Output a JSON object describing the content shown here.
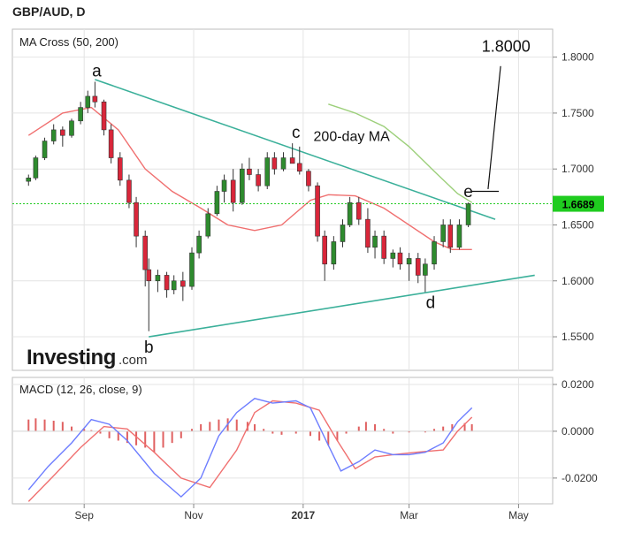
{
  "header": {
    "symbol_label": "GBP/AUD, D"
  },
  "brand": {
    "name": "Investing",
    "suffix": ".com"
  },
  "colors": {
    "up": "#2e8b2e",
    "down": "#d9263a",
    "ma50": "#f07070",
    "ma200": "#9ccf7a",
    "trendline": "#3bb09a",
    "price_line": "#22cc22",
    "price_badge": "#1fcc1f",
    "macd": "#6d7dff",
    "signal": "#f07070",
    "hist": "#e06060",
    "grid": "#e4e4e4"
  },
  "chart_data": [
    {
      "type": "candlestick",
      "title": "MA Cross (50, 200)",
      "x_tick_labels": [
        "Sep",
        "Nov",
        "2017",
        "Mar",
        "May"
      ],
      "y_tick_labels": [
        "1.8000",
        "1.7500",
        "1.7000",
        "1.6500",
        "1.6000",
        "1.5500"
      ],
      "ylim": [
        1.52,
        1.825
      ],
      "last_price": "1.6689",
      "annotations": [
        {
          "text": "a",
          "date": "2016-09-08",
          "value": 1.778
        },
        {
          "text": "b",
          "date": "2016-10-07",
          "value": 1.55
        },
        {
          "text": "c",
          "date": "2016-12-28",
          "value": 1.723
        },
        {
          "text": "d",
          "date": "2017-03-13",
          "value": 1.59
        },
        {
          "text": "e",
          "date": "2017-04-03",
          "value": 1.67
        },
        {
          "text": "1.8000",
          "date": "2017-04-24",
          "value": 1.8
        },
        {
          "text": "200-day MA",
          "date": "2017-01-28",
          "value": 1.725
        }
      ],
      "trendlines": [
        {
          "from": {
            "date": "2016-09-07",
            "value": 1.78
          },
          "to": {
            "date": "2017-04-18",
            "value": 1.655
          }
        },
        {
          "from": {
            "date": "2016-10-07",
            "value": 1.55
          },
          "to": {
            "date": "2017-05-10",
            "value": 1.605
          }
        }
      ],
      "target_marker": {
        "date_from": "2017-04-05",
        "date_to": "2017-04-20",
        "value": 1.68
      },
      "target_pointer": {
        "from": {
          "date": "2017-04-14",
          "value": 1.682
        },
        "to": {
          "date": "2017-04-21",
          "value": 1.792
        }
      },
      "ma50": [
        [
          "2016-08-01",
          1.73
        ],
        [
          "2016-08-20",
          1.75
        ],
        [
          "2016-09-05",
          1.755
        ],
        [
          "2016-09-20",
          1.735
        ],
        [
          "2016-10-05",
          1.7
        ],
        [
          "2016-10-20",
          1.68
        ],
        [
          "2016-11-05",
          1.665
        ],
        [
          "2016-11-20",
          1.65
        ],
        [
          "2016-12-05",
          1.645
        ],
        [
          "2016-12-20",
          1.65
        ],
        [
          "2017-01-05",
          1.672
        ],
        [
          "2017-01-15",
          1.677
        ],
        [
          "2017-01-30",
          1.676
        ],
        [
          "2017-02-15",
          1.665
        ],
        [
          "2017-03-01",
          1.65
        ],
        [
          "2017-03-15",
          1.635
        ],
        [
          "2017-03-25",
          1.628
        ],
        [
          "2017-04-05",
          1.628
        ]
      ],
      "ma200": [
        [
          "2017-01-15",
          1.758
        ],
        [
          "2017-01-30",
          1.75
        ],
        [
          "2017-02-15",
          1.738
        ],
        [
          "2017-03-01",
          1.72
        ],
        [
          "2017-03-15",
          1.698
        ],
        [
          "2017-03-28",
          1.678
        ],
        [
          "2017-04-05",
          1.67
        ]
      ],
      "ohlc": [
        [
          "2016-08-01",
          1.689,
          1.695,
          1.685,
          1.692
        ],
        [
          "2016-08-05",
          1.692,
          1.712,
          1.69,
          1.71
        ],
        [
          "2016-08-10",
          1.71,
          1.728,
          1.708,
          1.725
        ],
        [
          "2016-08-15",
          1.725,
          1.74,
          1.722,
          1.735
        ],
        [
          "2016-08-20",
          1.735,
          1.738,
          1.72,
          1.73
        ],
        [
          "2016-08-25",
          1.73,
          1.745,
          1.728,
          1.743
        ],
        [
          "2016-08-30",
          1.743,
          1.76,
          1.74,
          1.755
        ],
        [
          "2016-09-03",
          1.755,
          1.77,
          1.75,
          1.765
        ],
        [
          "2016-09-07",
          1.765,
          1.778,
          1.755,
          1.76
        ],
        [
          "2016-09-12",
          1.76,
          1.762,
          1.73,
          1.735
        ],
        [
          "2016-09-16",
          1.735,
          1.74,
          1.705,
          1.71
        ],
        [
          "2016-09-21",
          1.71,
          1.715,
          1.685,
          1.69
        ],
        [
          "2016-09-26",
          1.69,
          1.695,
          1.665,
          1.67
        ],
        [
          "2016-09-30",
          1.67,
          1.675,
          1.63,
          1.64
        ],
        [
          "2016-10-05",
          1.64,
          1.645,
          1.595,
          1.61
        ],
        [
          "2016-10-07",
          1.61,
          1.62,
          1.555,
          1.6
        ],
        [
          "2016-10-12",
          1.6,
          1.61,
          1.59,
          1.605
        ],
        [
          "2016-10-17",
          1.605,
          1.608,
          1.585,
          1.592
        ],
        [
          "2016-10-21",
          1.592,
          1.605,
          1.588,
          1.6
        ],
        [
          "2016-10-26",
          1.6,
          1.608,
          1.582,
          1.595
        ],
        [
          "2016-10-31",
          1.595,
          1.63,
          1.592,
          1.625
        ],
        [
          "2016-11-04",
          1.625,
          1.645,
          1.62,
          1.64
        ],
        [
          "2016-11-09",
          1.64,
          1.665,
          1.638,
          1.66
        ],
        [
          "2016-11-14",
          1.66,
          1.685,
          1.658,
          1.68
        ],
        [
          "2016-11-18",
          1.68,
          1.695,
          1.67,
          1.69
        ],
        [
          "2016-11-23",
          1.69,
          1.7,
          1.662,
          1.67
        ],
        [
          "2016-11-28",
          1.67,
          1.705,
          1.668,
          1.7
        ],
        [
          "2016-12-02",
          1.7,
          1.71,
          1.69,
          1.695
        ],
        [
          "2016-12-07",
          1.695,
          1.7,
          1.68,
          1.685
        ],
        [
          "2016-12-12",
          1.685,
          1.715,
          1.682,
          1.71
        ],
        [
          "2016-12-16",
          1.71,
          1.715,
          1.695,
          1.7
        ],
        [
          "2016-12-21",
          1.7,
          1.715,
          1.698,
          1.71
        ],
        [
          "2016-12-26",
          1.71,
          1.723,
          1.705,
          1.705
        ],
        [
          "2016-12-30",
          1.705,
          1.72,
          1.695,
          1.698
        ],
        [
          "2017-01-04",
          1.698,
          1.7,
          1.68,
          1.685
        ],
        [
          "2017-01-09",
          1.685,
          1.688,
          1.635,
          1.64
        ],
        [
          "2017-01-13",
          1.64,
          1.645,
          1.6,
          1.615
        ],
        [
          "2017-01-18",
          1.615,
          1.64,
          1.61,
          1.635
        ],
        [
          "2017-01-23",
          1.635,
          1.655,
          1.63,
          1.65
        ],
        [
          "2017-01-27",
          1.65,
          1.675,
          1.648,
          1.67
        ],
        [
          "2017-02-01",
          1.67,
          1.675,
          1.65,
          1.655
        ],
        [
          "2017-02-06",
          1.655,
          1.665,
          1.625,
          1.63
        ],
        [
          "2017-02-10",
          1.63,
          1.645,
          1.62,
          1.64
        ],
        [
          "2017-02-15",
          1.64,
          1.645,
          1.615,
          1.62
        ],
        [
          "2017-02-20",
          1.62,
          1.628,
          1.612,
          1.625
        ],
        [
          "2017-02-24",
          1.625,
          1.63,
          1.61,
          1.615
        ],
        [
          "2017-03-01",
          1.615,
          1.625,
          1.6,
          1.62
        ],
        [
          "2017-03-06",
          1.62,
          1.625,
          1.598,
          1.605
        ],
        [
          "2017-03-10",
          1.605,
          1.62,
          1.59,
          1.615
        ],
        [
          "2017-03-15",
          1.615,
          1.64,
          1.61,
          1.635
        ],
        [
          "2017-03-20",
          1.635,
          1.655,
          1.63,
          1.65
        ],
        [
          "2017-03-24",
          1.65,
          1.655,
          1.625,
          1.63
        ],
        [
          "2017-03-29",
          1.63,
          1.655,
          1.628,
          1.65
        ],
        [
          "2017-04-03",
          1.65,
          1.67,
          1.648,
          1.6689
        ]
      ]
    },
    {
      "type": "line",
      "title": "MACD (12, 26, close, 9)",
      "y_tick_labels": [
        "0.0200",
        "0.0000",
        "-0.0200"
      ],
      "ylim": [
        -0.031,
        0.023
      ],
      "series": [
        {
          "name": "MACD",
          "values": [
            [
              "2016-08-01",
              -0.025
            ],
            [
              "2016-08-12",
              -0.015
            ],
            [
              "2016-08-25",
              -0.005
            ],
            [
              "2016-09-05",
              0.005
            ],
            [
              "2016-09-15",
              0.003
            ],
            [
              "2016-09-25",
              -0.004
            ],
            [
              "2016-10-10",
              -0.018
            ],
            [
              "2016-10-25",
              -0.028
            ],
            [
              "2016-11-05",
              -0.02
            ],
            [
              "2016-11-15",
              -0.002
            ],
            [
              "2016-11-25",
              0.008
            ],
            [
              "2016-12-05",
              0.014
            ],
            [
              "2016-12-15",
              0.012
            ],
            [
              "2016-12-28",
              0.013
            ],
            [
              "2017-01-05",
              0.01
            ],
            [
              "2017-01-15",
              -0.006
            ],
            [
              "2017-01-22",
              -0.017
            ],
            [
              "2017-02-01",
              -0.013
            ],
            [
              "2017-02-10",
              -0.008
            ],
            [
              "2017-02-20",
              -0.01
            ],
            [
              "2017-03-01",
              -0.01
            ],
            [
              "2017-03-10",
              -0.009
            ],
            [
              "2017-03-20",
              -0.005
            ],
            [
              "2017-03-28",
              0.004
            ],
            [
              "2017-04-05",
              0.01
            ]
          ]
        },
        {
          "name": "Signal",
          "values": [
            [
              "2016-08-01",
              -0.03
            ],
            [
              "2016-08-15",
              -0.019
            ],
            [
              "2016-08-30",
              -0.007
            ],
            [
              "2016-09-12",
              0.002
            ],
            [
              "2016-09-25",
              0.001
            ],
            [
              "2016-10-10",
              -0.009
            ],
            [
              "2016-10-25",
              -0.02
            ],
            [
              "2016-11-10",
              -0.024
            ],
            [
              "2016-11-25",
              -0.008
            ],
            [
              "2016-12-05",
              0.008
            ],
            [
              "2016-12-15",
              0.013
            ],
            [
              "2016-12-28",
              0.012
            ],
            [
              "2017-01-10",
              0.009
            ],
            [
              "2017-01-20",
              -0.004
            ],
            [
              "2017-01-30",
              -0.016
            ],
            [
              "2017-02-10",
              -0.011
            ],
            [
              "2017-02-20",
              -0.01
            ],
            [
              "2017-03-05",
              -0.009
            ],
            [
              "2017-03-20",
              -0.008
            ],
            [
              "2017-03-28",
              0.0
            ],
            [
              "2017-04-05",
              0.006
            ]
          ]
        }
      ],
      "histogram": [
        [
          "2016-08-01",
          0.005
        ],
        [
          "2016-08-05",
          0.0055
        ],
        [
          "2016-08-10",
          0.005
        ],
        [
          "2016-08-15",
          0.0045
        ],
        [
          "2016-08-20",
          0.004
        ],
        [
          "2016-08-25",
          0.002
        ],
        [
          "2016-09-01",
          0.001
        ],
        [
          "2016-09-05",
          0.0005
        ],
        [
          "2016-09-10",
          -0.001
        ],
        [
          "2016-09-15",
          -0.003
        ],
        [
          "2016-09-20",
          -0.004
        ],
        [
          "2016-09-25",
          -0.005
        ],
        [
          "2016-09-30",
          -0.006
        ],
        [
          "2016-10-05",
          -0.007
        ],
        [
          "2016-10-10",
          -0.009
        ],
        [
          "2016-10-15",
          -0.007
        ],
        [
          "2016-10-20",
          -0.005
        ],
        [
          "2016-10-25",
          -0.003
        ],
        [
          "2016-10-31",
          0.001
        ],
        [
          "2016-11-05",
          0.003
        ],
        [
          "2016-11-10",
          0.004
        ],
        [
          "2016-11-15",
          0.005
        ],
        [
          "2016-11-20",
          0.0055
        ],
        [
          "2016-11-25",
          0.005
        ],
        [
          "2016-12-01",
          0.004
        ],
        [
          "2016-12-05",
          0.003
        ],
        [
          "2016-12-10",
          0.001
        ],
        [
          "2016-12-15",
          -0.001
        ],
        [
          "2016-12-20",
          -0.0015
        ],
        [
          "2016-12-28",
          -0.001
        ],
        [
          "2017-01-05",
          -0.002
        ],
        [
          "2017-01-10",
          -0.004
        ],
        [
          "2017-01-15",
          -0.006
        ],
        [
          "2017-01-20",
          -0.004
        ],
        [
          "2017-01-25",
          -0.001
        ],
        [
          "2017-02-01",
          0.002
        ],
        [
          "2017-02-05",
          0.004
        ],
        [
          "2017-02-10",
          0.003
        ],
        [
          "2017-02-15",
          0.001
        ],
        [
          "2017-02-20",
          -0.001
        ],
        [
          "2017-03-01",
          -0.0005
        ],
        [
          "2017-03-10",
          -0.0005
        ],
        [
          "2017-03-15",
          0.001
        ],
        [
          "2017-03-20",
          0.002
        ],
        [
          "2017-03-25",
          0.003
        ],
        [
          "2017-04-01",
          0.0035
        ],
        [
          "2017-04-05",
          0.003
        ]
      ]
    }
  ]
}
